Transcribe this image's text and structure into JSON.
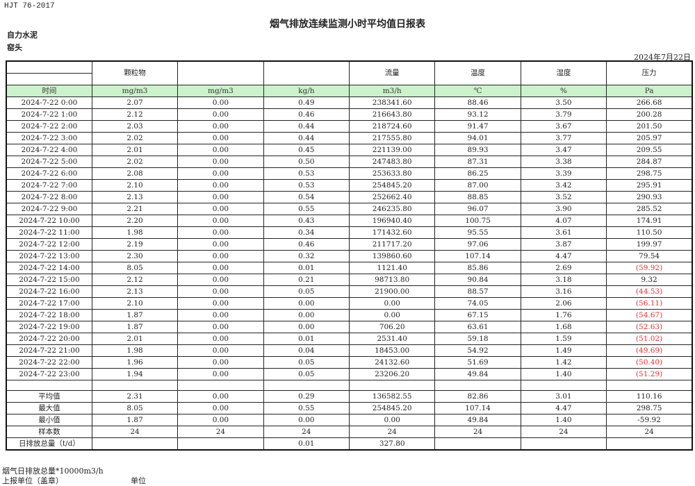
{
  "header": {
    "standard": "HJT  76-2017",
    "title": "烟气排放连续监测小时平均值日报表",
    "company": "自力水泥",
    "unit": "窑头",
    "date": "2024年7月22日"
  },
  "columns": {
    "names": [
      "",
      "颗粒物",
      "",
      "",
      "流量",
      "温度",
      "湿度",
      "压力"
    ],
    "units": [
      "时间",
      "mg/m3",
      "mg/m3",
      "kg/h",
      "m3/h",
      "℃",
      "%",
      "Pa"
    ]
  },
  "rows": [
    [
      "2024-7-22  0:00",
      "2.07",
      "0.00",
      "0.49",
      "238341.60",
      "88.46",
      "3.50",
      "266.68"
    ],
    [
      "2024-7-22  1:00",
      "2.12",
      "0.00",
      "0.46",
      "216643.80",
      "93.12",
      "3.79",
      "200.28"
    ],
    [
      "2024-7-22  2:00",
      "2.03",
      "0.00",
      "0.44",
      "218724.60",
      "91.47",
      "3.67",
      "201.50"
    ],
    [
      "2024-7-22  3:00",
      "2.02",
      "0.00",
      "0.44",
      "217555.80",
      "94.01",
      "3.77",
      "205.97"
    ],
    [
      "2024-7-22  4:00",
      "2.01",
      "0.00",
      "0.45",
      "221139.00",
      "89.93",
      "3.47",
      "209.55"
    ],
    [
      "2024-7-22  5:00",
      "2.02",
      "0.00",
      "0.50",
      "247483.80",
      "87.31",
      "3.38",
      "284.87"
    ],
    [
      "2024-7-22  6:00",
      "2.08",
      "0.00",
      "0.53",
      "253633.80",
      "86.25",
      "3.39",
      "298.75"
    ],
    [
      "2024-7-22  7:00",
      "2.10",
      "0.00",
      "0.53",
      "254845.20",
      "87.00",
      "3.42",
      "295.91"
    ],
    [
      "2024-7-22  8:00",
      "2.13",
      "0.00",
      "0.54",
      "252662.40",
      "88.85",
      "3.52",
      "290.93"
    ],
    [
      "2024-7-22  9:00",
      "2.21",
      "0.00",
      "0.55",
      "246235.80",
      "96.07",
      "3.90",
      "285.52"
    ],
    [
      "2024-7-22  10:00",
      "2.20",
      "0.00",
      "0.43",
      "196940.40",
      "100.75",
      "4.07",
      "174.91"
    ],
    [
      "2024-7-22  11:00",
      "1.98",
      "0.00",
      "0.34",
      "171432.60",
      "95.55",
      "3.61",
      "110.50"
    ],
    [
      "2024-7-22  12:00",
      "2.19",
      "0.00",
      "0.46",
      "211717.20",
      "97.06",
      "3.87",
      "199.97"
    ],
    [
      "2024-7-22  13:00",
      "2.30",
      "0.00",
      "0.32",
      "139860.60",
      "107.14",
      "4.47",
      "79.54"
    ],
    [
      "2024-7-22  14:00",
      "8.05",
      "0.00",
      "0.01",
      "1121.40",
      "85.86",
      "2.69",
      "(59.92)"
    ],
    [
      "2024-7-22  15:00",
      "2.12",
      "0.00",
      "0.21",
      "98713.80",
      "90.84",
      "3.18",
      "9.32"
    ],
    [
      "2024-7-22  16:00",
      "2.13",
      "0.00",
      "0.05",
      "21900.00",
      "88.57",
      "3.16",
      "(44.53)"
    ],
    [
      "2024-7-22  17:00",
      "2.10",
      "0.00",
      "0.00",
      "0.00",
      "74.05",
      "2.06",
      "(56.11)"
    ],
    [
      "2024-7-22  18:00",
      "1.87",
      "0.00",
      "0.00",
      "0.00",
      "67.15",
      "1.76",
      "(54.67)"
    ],
    [
      "2024-7-22  19:00",
      "1.87",
      "0.00",
      "0.00",
      "706.20",
      "63.61",
      "1.68",
      "(52.63)"
    ],
    [
      "2024-7-22  20:00",
      "2.01",
      "0.00",
      "0.01",
      "2531.40",
      "59.18",
      "1.59",
      "(51.02)"
    ],
    [
      "2024-7-22  21:00",
      "1.98",
      "0.00",
      "0.04",
      "18453.00",
      "54.92",
      "1.49",
      "(49.69)"
    ],
    [
      "2024-7-22  22:00",
      "1.96",
      "0.00",
      "0.05",
      "24132.60",
      "51.69",
      "1.42",
      "(50.40)"
    ],
    [
      "2024-7-22  23:00",
      "1.94",
      "0.00",
      "0.05",
      "23206.20",
      "49.84",
      "1.40",
      "(51.29)"
    ]
  ],
  "stats": [
    [
      "平均值",
      "2.31",
      "0.00",
      "0.29",
      "136582.55",
      "82.86",
      "3.01",
      "110.16"
    ],
    [
      "最大值",
      "8.05",
      "0.00",
      "0.55",
      "254845.20",
      "107.14",
      "4.47",
      "298.75"
    ],
    [
      "最小值",
      "1.87",
      "0.00",
      "0.00",
      "0.00",
      "49.84",
      "1.40",
      "-59.92"
    ],
    [
      "样本数",
      "24",
      "24",
      "24",
      "24",
      "24",
      "24",
      "24"
    ],
    [
      "日排放总量（t/d）",
      "",
      "",
      "0.01",
      "327.80",
      "",
      "",
      ""
    ]
  ],
  "footer": {
    "note": "烟气日排放总量*10000m3/h",
    "reporter_label": "上报单位（盖章）",
    "unit_label": "单位"
  },
  "colors": {
    "header_green": "#ccf2cc",
    "negative_red": "#e03030"
  }
}
